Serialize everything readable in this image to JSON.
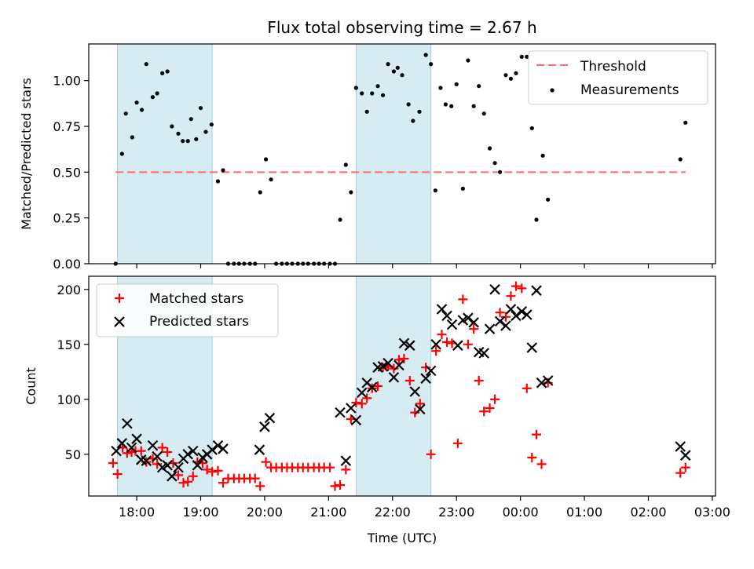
{
  "chart_data": [
    {
      "type": "scatter",
      "title": "Flux total observing time = 2.67 h",
      "ylabel": "Matched/Predicted stars",
      "xlabel": "",
      "ylim": [
        0,
        1.2
      ],
      "y_ticks": [
        "0.00",
        "0.25",
        "0.50",
        "0.75",
        "1.00"
      ],
      "legend_placement": "top-right",
      "grid": false,
      "shaded_intervals": [
        [
          17.7,
          19.18
        ],
        [
          21.43,
          22.6
        ]
      ],
      "threshold": {
        "name": "Threshold",
        "value": 0.5,
        "x_range": [
          17.67,
          26.58
        ],
        "color": "#ff6b6b"
      },
      "series": [
        {
          "name": "Measurements",
          "color": "#000000",
          "x": [
            17.67,
            17.77,
            17.83,
            17.93,
            18.0,
            18.08,
            18.15,
            18.25,
            18.32,
            18.4,
            18.48,
            18.55,
            18.65,
            18.72,
            18.8,
            18.85,
            18.93,
            19.0,
            19.08,
            19.17,
            19.27,
            19.35,
            19.43,
            19.52,
            19.6,
            19.68,
            19.77,
            19.85,
            19.93,
            20.02,
            20.1,
            20.18,
            20.27,
            20.35,
            20.43,
            20.52,
            20.6,
            20.68,
            20.77,
            20.85,
            20.93,
            21.02,
            21.1,
            21.18,
            21.27,
            21.35,
            21.43,
            21.52,
            21.6,
            21.68,
            21.77,
            21.85,
            21.93,
            22.02,
            22.08,
            22.15,
            22.25,
            22.32,
            22.42,
            22.52,
            22.6,
            22.67,
            22.75,
            22.83,
            22.92,
            23.0,
            23.1,
            23.18,
            23.27,
            23.35,
            23.43,
            23.52,
            23.6,
            23.68,
            23.77,
            23.85,
            23.93,
            24.02,
            24.1,
            24.18,
            24.25,
            24.35,
            24.43,
            26.5,
            26.58
          ],
          "y": [
            0.0,
            0.6,
            0.82,
            0.69,
            0.88,
            0.84,
            1.09,
            0.91,
            0.93,
            1.04,
            1.05,
            0.75,
            0.71,
            0.67,
            0.67,
            0.79,
            0.68,
            0.85,
            0.72,
            0.76,
            0.45,
            0.51,
            0.0,
            0.0,
            0.0,
            0.0,
            0.0,
            0.0,
            0.39,
            0.57,
            0.46,
            0.0,
            0.0,
            0.0,
            0.0,
            0.0,
            0.0,
            0.0,
            0.0,
            0.0,
            0.0,
            0.0,
            0.0,
            0.24,
            0.54,
            0.39,
            0.96,
            0.93,
            0.83,
            0.93,
            0.97,
            0.92,
            1.09,
            1.05,
            1.07,
            1.03,
            0.87,
            0.78,
            0.83,
            1.14,
            1.09,
            0.4,
            0.96,
            0.87,
            0.86,
            0.98,
            0.41,
            1.11,
            0.86,
            0.97,
            0.82,
            0.63,
            0.55,
            0.5,
            1.03,
            1.01,
            1.04,
            1.13,
            1.13,
            0.74,
            0.24,
            0.59,
            0.35,
            0.57,
            0.77
          ]
        }
      ]
    },
    {
      "type": "scatter",
      "title": "",
      "xlabel": "Time (UTC)",
      "ylabel": "Count",
      "ylim": [
        12,
        212
      ],
      "y_ticks": [
        "50",
        "100",
        "150",
        "200"
      ],
      "x_ticks": [
        "18:00",
        "19:00",
        "20:00",
        "21:00",
        "22:00",
        "23:00",
        "00:00",
        "01:00",
        "02:00",
        "03:00"
      ],
      "x_tick_values": [
        18,
        19,
        20,
        21,
        22,
        23,
        24,
        25,
        26,
        27
      ],
      "xlim": [
        17.25,
        27.05
      ],
      "legend_placement": "top-left",
      "grid": false,
      "shaded_intervals": [
        [
          17.7,
          19.18
        ],
        [
          21.43,
          22.6
        ]
      ],
      "series": [
        {
          "name": "Matched stars",
          "marker": "plus",
          "color": "#ff0000",
          "x": [
            17.63,
            17.7,
            17.78,
            17.85,
            17.92,
            17.98,
            18.07,
            18.15,
            18.25,
            18.32,
            18.4,
            18.48,
            18.57,
            18.65,
            18.73,
            18.8,
            18.88,
            18.95,
            19.03,
            19.1,
            19.18,
            19.27,
            19.35,
            19.43,
            19.52,
            19.6,
            19.68,
            19.77,
            19.85,
            19.93,
            20.02,
            20.1,
            20.18,
            20.27,
            20.35,
            20.43,
            20.52,
            20.6,
            20.68,
            20.77,
            20.85,
            20.93,
            21.02,
            21.1,
            21.18,
            21.27,
            21.35,
            21.43,
            21.52,
            21.6,
            21.68,
            21.77,
            21.85,
            21.93,
            22.02,
            22.1,
            22.18,
            22.27,
            22.35,
            22.43,
            22.52,
            22.6,
            22.68,
            22.77,
            22.85,
            22.93,
            23.02,
            23.1,
            23.18,
            23.27,
            23.35,
            23.43,
            23.52,
            23.6,
            23.68,
            23.77,
            23.85,
            23.93,
            24.02,
            24.1,
            24.18,
            24.25,
            24.33,
            24.43,
            26.5,
            26.58
          ],
          "y": [
            42,
            32,
            56,
            51,
            52,
            53,
            53,
            43,
            46,
            41,
            56,
            52,
            42,
            31,
            24,
            25,
            30,
            43,
            42,
            36,
            34,
            35,
            24,
            28,
            28,
            28,
            28,
            28,
            28,
            21,
            43,
            38,
            38,
            38,
            38,
            38,
            38,
            38,
            38,
            38,
            38,
            38,
            38,
            21,
            22,
            36,
            82,
            97,
            96,
            101,
            110,
            112,
            129,
            130,
            128,
            136,
            137,
            117,
            88,
            96,
            129,
            50,
            144,
            159,
            152,
            151,
            60,
            191,
            150,
            164,
            117,
            89,
            92,
            100,
            179,
            175,
            194,
            203,
            201,
            110,
            47,
            68,
            41,
            115,
            33,
            38
          ]
        },
        {
          "name": "Predicted stars",
          "marker": "x",
          "color": "#000000",
          "x": [
            17.68,
            17.77,
            17.85,
            17.92,
            18.0,
            18.07,
            18.15,
            18.25,
            18.32,
            18.4,
            18.48,
            18.55,
            18.65,
            18.73,
            18.8,
            18.88,
            18.95,
            19.03,
            19.1,
            19.18,
            19.27,
            19.35,
            19.92,
            20.0,
            20.08,
            21.18,
            21.27,
            21.35,
            21.43,
            21.52,
            21.6,
            21.68,
            21.77,
            21.85,
            21.93,
            22.02,
            22.1,
            22.18,
            22.27,
            22.35,
            22.43,
            22.52,
            22.6,
            22.68,
            22.77,
            22.85,
            22.93,
            23.02,
            23.1,
            23.18,
            23.27,
            23.35,
            23.43,
            23.52,
            23.6,
            23.68,
            23.77,
            23.85,
            23.93,
            24.02,
            24.1,
            24.18,
            24.25,
            24.33,
            24.43,
            26.5,
            26.58
          ],
          "y": [
            53,
            60,
            78,
            56,
            64,
            45,
            44,
            58,
            48,
            38,
            40,
            30,
            38,
            46,
            50,
            53,
            40,
            47,
            50,
            54,
            58,
            55,
            54,
            75,
            83,
            88,
            44,
            92,
            81,
            106,
            115,
            111,
            129,
            130,
            133,
            120,
            131,
            151,
            149,
            107,
            91,
            119,
            126,
            150,
            182,
            176,
            168,
            149,
            172,
            174,
            170,
            143,
            142,
            164,
            200,
            171,
            167,
            182,
            176,
            180,
            177,
            147,
            199,
            115,
            117,
            57,
            49
          ]
        }
      ]
    }
  ]
}
